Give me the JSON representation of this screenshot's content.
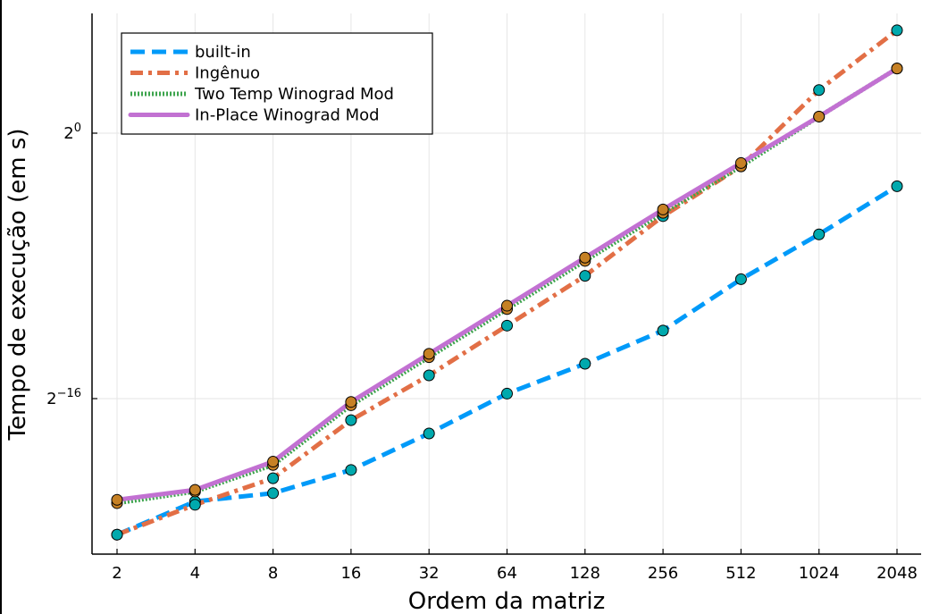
{
  "chart_data": {
    "type": "line",
    "xlabel": "Ordem da matriz",
    "ylabel": "Tempo de execução (em s)",
    "x": [
      2,
      4,
      8,
      16,
      32,
      64,
      128,
      256,
      512,
      1024,
      2048
    ],
    "x_scale": "log2",
    "y_scale": "log2",
    "ylim_log2": [
      -25.1,
      7.0
    ],
    "y_ticks": [
      {
        "log2": 0,
        "label_base": "2",
        "label_exp": "0"
      },
      {
        "log2": -16,
        "label_base": "2",
        "label_exp": "−16"
      }
    ],
    "grid": true,
    "legend_position": "top-left",
    "series": [
      {
        "name": "built-in",
        "color": "#009af9",
        "dash": "dashed",
        "marker_color": "#00a9ad",
        "y_log2": [
          -24.2,
          -22.2,
          -21.7,
          -20.3,
          -18.1,
          -15.7,
          -13.9,
          -11.9,
          -8.8,
          -6.1,
          -3.2
        ]
      },
      {
        "name": "Ingênuo",
        "color": "#e26f46",
        "dash": "dashdot",
        "marker_color": "#00a9ad",
        "y_log2": [
          -24.2,
          -22.4,
          -20.8,
          -17.3,
          -14.6,
          -11.6,
          -8.6,
          -5.0,
          -2.0,
          2.6,
          6.2
        ]
      },
      {
        "name": "Two Temp Winograd Mod",
        "color": "#3da44d",
        "dash": "dotted",
        "marker_color": "#c68125",
        "y_log2": [
          -22.3,
          -21.6,
          -20.0,
          -16.4,
          -13.5,
          -10.6,
          -7.7,
          -4.8,
          -2.0,
          1.0,
          3.9
        ]
      },
      {
        "name": "In-Place Winograd Mod",
        "color": "#c271d2",
        "dash": "solid",
        "marker_color": "#c68125",
        "y_log2": [
          -22.1,
          -21.5,
          -19.8,
          -16.2,
          -13.3,
          -10.4,
          -7.5,
          -4.6,
          -1.8,
          1.0,
          3.9
        ]
      }
    ]
  }
}
